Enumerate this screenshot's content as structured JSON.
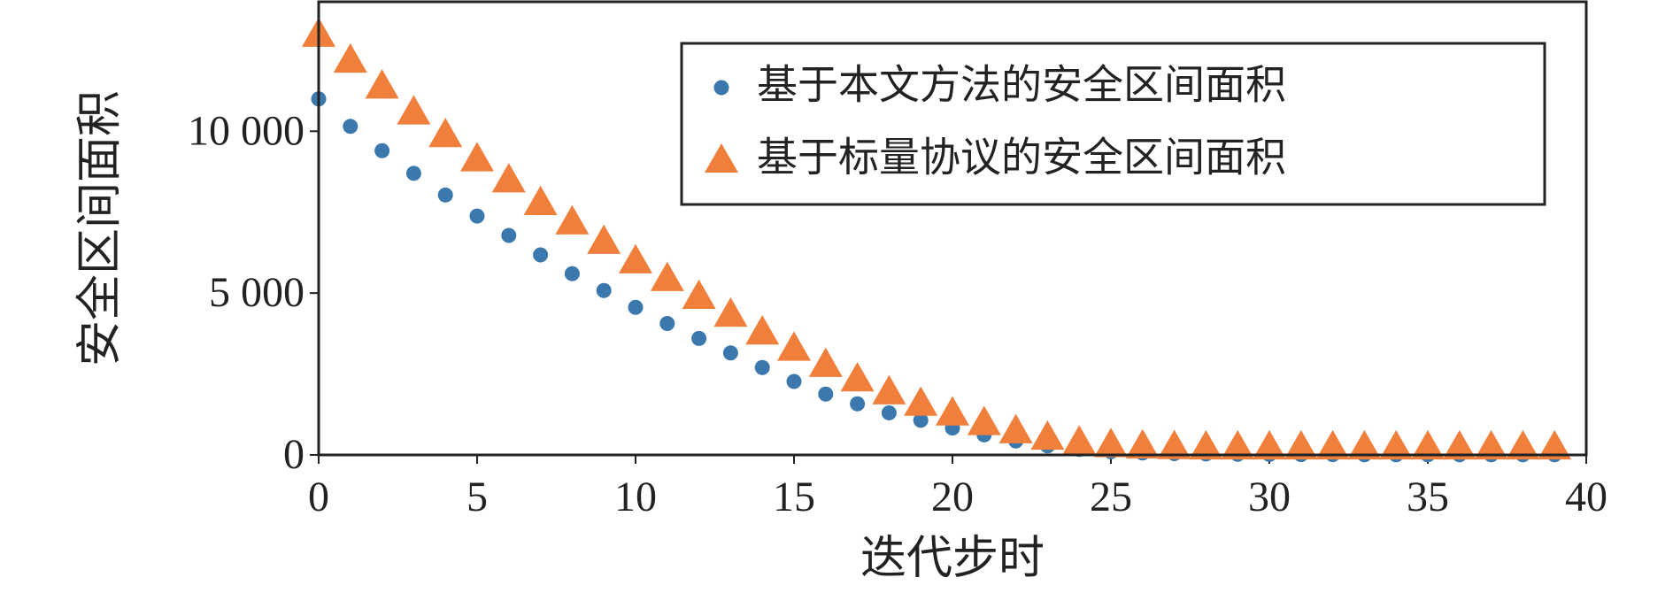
{
  "chart_data": {
    "type": "scatter",
    "x_label": "迭代步时",
    "y_label": "安全区间面积",
    "x": [
      0,
      1,
      2,
      3,
      4,
      5,
      6,
      7,
      8,
      9,
      10,
      11,
      12,
      13,
      14,
      15,
      16,
      17,
      18,
      19,
      20,
      21,
      22,
      23,
      24,
      25,
      26,
      27,
      28,
      29,
      30,
      31,
      32,
      33,
      34,
      35,
      36,
      37,
      38,
      39
    ],
    "series": [
      {
        "name": "基于本文方法的安全区间面积",
        "color": "#3a78ad",
        "marker": "circle",
        "values": [
          11000,
          10150,
          9400,
          8700,
          8030,
          7380,
          6780,
          6180,
          5600,
          5080,
          4560,
          4060,
          3600,
          3150,
          2700,
          2270,
          1880,
          1580,
          1300,
          1070,
          830,
          620,
          430,
          280,
          170,
          100,
          60,
          40,
          30,
          20,
          15,
          10,
          10,
          5,
          5,
          5,
          5,
          5,
          5,
          5
        ]
      },
      {
        "name": "基于标量协议的安全区间面积",
        "color": "#f07f3c",
        "marker": "triangle",
        "values": [
          13000,
          12200,
          11400,
          10600,
          9900,
          9150,
          8500,
          7800,
          7200,
          6600,
          6000,
          5450,
          4900,
          4350,
          3800,
          3300,
          2800,
          2350,
          1950,
          1600,
          1300,
          1000,
          750,
          550,
          400,
          320,
          280,
          260,
          250,
          250,
          250,
          250,
          250,
          250,
          250,
          250,
          250,
          250,
          250,
          250
        ]
      }
    ],
    "xlim": [
      0,
      40
    ],
    "xticks": [
      0,
      5,
      10,
      15,
      20,
      25,
      30,
      35,
      40
    ],
    "ylim": [
      0,
      14000
    ],
    "yticks": [
      0,
      {
        "value": 5000,
        "label": "5 000"
      },
      {
        "value": 10000,
        "label": "10 000"
      }
    ],
    "legend": "upper right"
  }
}
